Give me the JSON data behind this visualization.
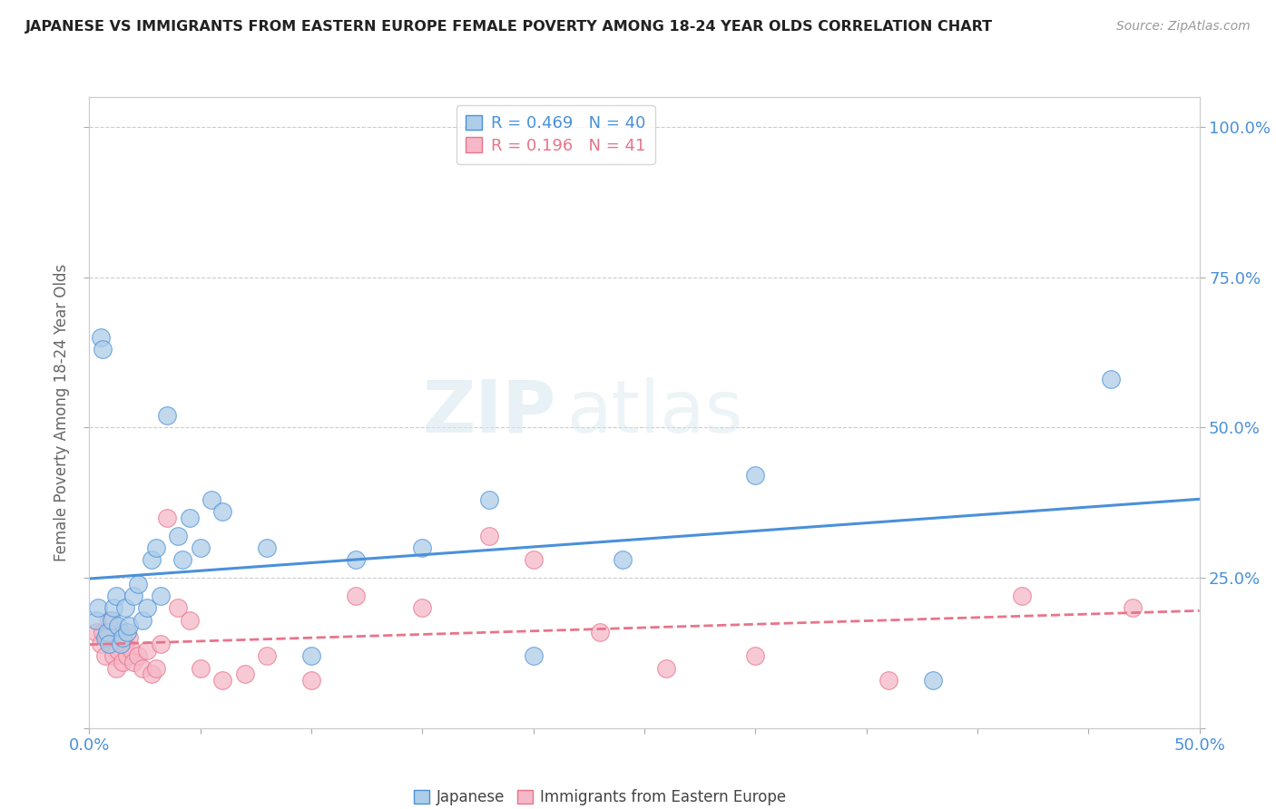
{
  "title": "JAPANESE VS IMMIGRANTS FROM EASTERN EUROPE FEMALE POVERTY AMONG 18-24 YEAR OLDS CORRELATION CHART",
  "source": "Source: ZipAtlas.com",
  "ylabel": "Female Poverty Among 18-24 Year Olds",
  "xlim": [
    0.0,
    0.5
  ],
  "ylim": [
    0.0,
    1.05
  ],
  "R_japanese": 0.469,
  "N_japanese": 40,
  "R_eastern": 0.196,
  "N_eastern": 41,
  "japanese_color": "#aecde8",
  "eastern_color": "#f5b8c8",
  "japanese_line_color": "#4a90d9",
  "eastern_line_color": "#e8748a",
  "background_color": "#ffffff",
  "watermark_zip": "ZIP",
  "watermark_atlas": "atlas",
  "japanese_x": [
    0.003,
    0.004,
    0.005,
    0.006,
    0.007,
    0.008,
    0.009,
    0.01,
    0.011,
    0.012,
    0.013,
    0.014,
    0.015,
    0.016,
    0.017,
    0.018,
    0.02,
    0.022,
    0.024,
    0.026,
    0.028,
    0.03,
    0.032,
    0.035,
    0.04,
    0.042,
    0.045,
    0.05,
    0.055,
    0.06,
    0.08,
    0.1,
    0.12,
    0.15,
    0.18,
    0.2,
    0.24,
    0.3,
    0.38,
    0.46
  ],
  "japanese_y": [
    0.18,
    0.2,
    0.65,
    0.63,
    0.15,
    0.16,
    0.14,
    0.18,
    0.2,
    0.22,
    0.17,
    0.14,
    0.15,
    0.2,
    0.16,
    0.17,
    0.22,
    0.24,
    0.18,
    0.2,
    0.28,
    0.3,
    0.22,
    0.52,
    0.32,
    0.28,
    0.35,
    0.3,
    0.38,
    0.36,
    0.3,
    0.12,
    0.28,
    0.3,
    0.38,
    0.12,
    0.28,
    0.42,
    0.08,
    0.58
  ],
  "eastern_x": [
    0.003,
    0.005,
    0.006,
    0.007,
    0.008,
    0.009,
    0.01,
    0.011,
    0.012,
    0.013,
    0.014,
    0.015,
    0.016,
    0.017,
    0.018,
    0.019,
    0.02,
    0.022,
    0.024,
    0.026,
    0.028,
    0.03,
    0.032,
    0.035,
    0.04,
    0.045,
    0.05,
    0.06,
    0.07,
    0.08,
    0.1,
    0.12,
    0.15,
    0.18,
    0.2,
    0.23,
    0.26,
    0.3,
    0.36,
    0.42,
    0.47
  ],
  "eastern_y": [
    0.16,
    0.14,
    0.16,
    0.12,
    0.15,
    0.18,
    0.14,
    0.12,
    0.1,
    0.13,
    0.16,
    0.11,
    0.14,
    0.12,
    0.15,
    0.13,
    0.11,
    0.12,
    0.1,
    0.13,
    0.09,
    0.1,
    0.14,
    0.35,
    0.2,
    0.18,
    0.1,
    0.08,
    0.09,
    0.12,
    0.08,
    0.22,
    0.2,
    0.32,
    0.28,
    0.16,
    0.1,
    0.12,
    0.08,
    0.22,
    0.2
  ]
}
